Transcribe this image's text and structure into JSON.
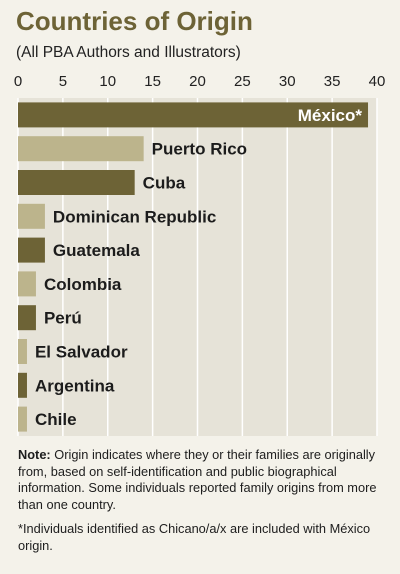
{
  "header": {
    "title": "Countries of Origin",
    "subtitle": "(All PBA Authors and Illustrators)"
  },
  "colors": {
    "dark": "#6d6336",
    "light": "#bcb48c",
    "grid": "#ffffff",
    "plot_bg": "#e6e3d8",
    "title": "#6d6336"
  },
  "chart_data": {
    "type": "bar",
    "orientation": "horizontal",
    "title": "Countries of Origin",
    "subtitle": "(All PBA Authors and Illustrators)",
    "xlabel": "",
    "ylabel": "",
    "xlim": [
      0,
      40
    ],
    "xticks": [
      0,
      5,
      10,
      15,
      20,
      25,
      30,
      35,
      40
    ],
    "axis_position": "top",
    "grid": true,
    "categories": [
      "México*",
      "Puerto Rico",
      "Cuba",
      "Dominican Republic",
      "Guatemala",
      "Colombia",
      "Perú",
      "El Salvador",
      "Argentina",
      "Chile"
    ],
    "values": [
      39,
      14,
      13,
      3,
      3,
      2,
      2,
      1,
      1,
      1
    ],
    "bar_colors": [
      "dark",
      "light",
      "dark",
      "light",
      "dark",
      "light",
      "dark",
      "light",
      "dark",
      "light"
    ],
    "label_inside": [
      true,
      false,
      false,
      false,
      false,
      false,
      false,
      false,
      false,
      false
    ]
  },
  "notes": {
    "note_label": "Note:",
    "note_text": " Origin indicates where they or their families are originally from, based on self-identification and public biographical information. Some individuals reported family origins from more than one country.",
    "footnote": "*Individuals identified as Chicano/a/x are included with México origin."
  }
}
